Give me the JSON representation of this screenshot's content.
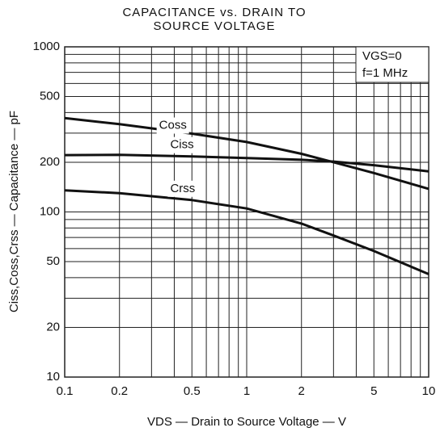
{
  "chart_data": {
    "type": "line",
    "title": [
      "CAPACITANCE vs. DRAIN TO",
      "SOURCE VOLTAGE"
    ],
    "x_label": "VDS — Drain to Source Voltage — V",
    "y_label": "Ciss,Coss,Crss — Capacitance — pF",
    "annotations": [
      "VGS=0",
      "f=1 MHz"
    ],
    "log_x": true,
    "log_y": true,
    "grid": true,
    "xlim": [
      0.1,
      10
    ],
    "ylim": [
      10,
      1000
    ],
    "xticks": [
      0.1,
      0.2,
      0.5,
      1,
      2,
      5,
      10
    ],
    "yticks": [
      10,
      20,
      50,
      100,
      200,
      500,
      1000
    ],
    "xgrid": [
      0.3,
      0.4,
      0.6,
      0.7,
      0.8,
      0.9,
      3,
      4,
      6,
      7,
      8,
      9
    ],
    "ygrid": [
      30,
      40,
      60,
      70,
      80,
      90,
      300,
      400,
      600,
      700,
      800,
      900
    ],
    "x": [
      0.1,
      0.2,
      0.5,
      1,
      2,
      3,
      5,
      10
    ],
    "series": [
      {
        "name": "Coss",
        "color": "#111111",
        "values": [
          370,
          340,
          298,
          265,
          225,
          200,
          172,
          138
        ]
      },
      {
        "name": "Ciss",
        "color": "#111111",
        "values": [
          221,
          222,
          217,
          212,
          207,
          202,
          192,
          176
        ]
      },
      {
        "name": "Crss",
        "color": "#111111",
        "values": [
          135,
          130,
          118,
          105,
          85,
          72,
          58,
          42
        ]
      }
    ]
  }
}
